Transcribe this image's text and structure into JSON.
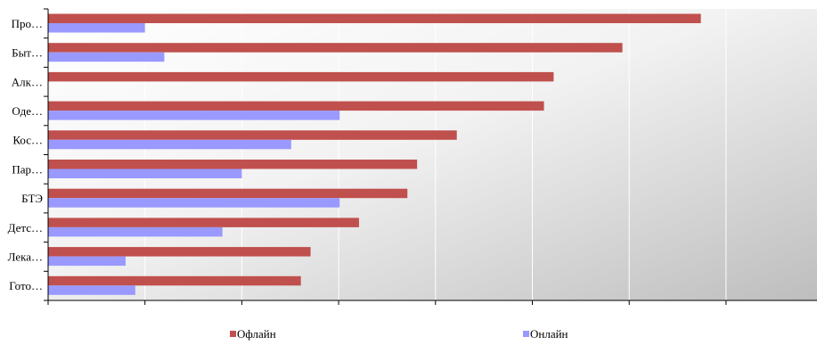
{
  "chart_data": {
    "type": "bar",
    "orientation": "horizontal",
    "categories": [
      "Про…",
      "Быт…",
      "Алк…",
      "Оде…",
      "Кос…",
      "Пар…",
      "БТЭ",
      "Детс…",
      "Лека…",
      "Гото…"
    ],
    "series": [
      {
        "name": "Офлайн",
        "color": "#c0504d",
        "values": [
          67.4,
          59.3,
          52.2,
          51.2,
          42.2,
          38.1,
          37.1,
          32.1,
          27.1,
          26.1
        ]
      },
      {
        "name": "Онлайн",
        "color": "#9999ff",
        "values": [
          10.0,
          12.0,
          0,
          30.1,
          25.1,
          20.0,
          30.1,
          18.0,
          8.0,
          9.0
        ]
      }
    ],
    "xlim": [
      0,
      80
    ],
    "x_gridlines": [
      10,
      20,
      30,
      40,
      50,
      60,
      70
    ],
    "x_tick_labels_shown": false,
    "grid": true,
    "legend_position": "bottom"
  }
}
